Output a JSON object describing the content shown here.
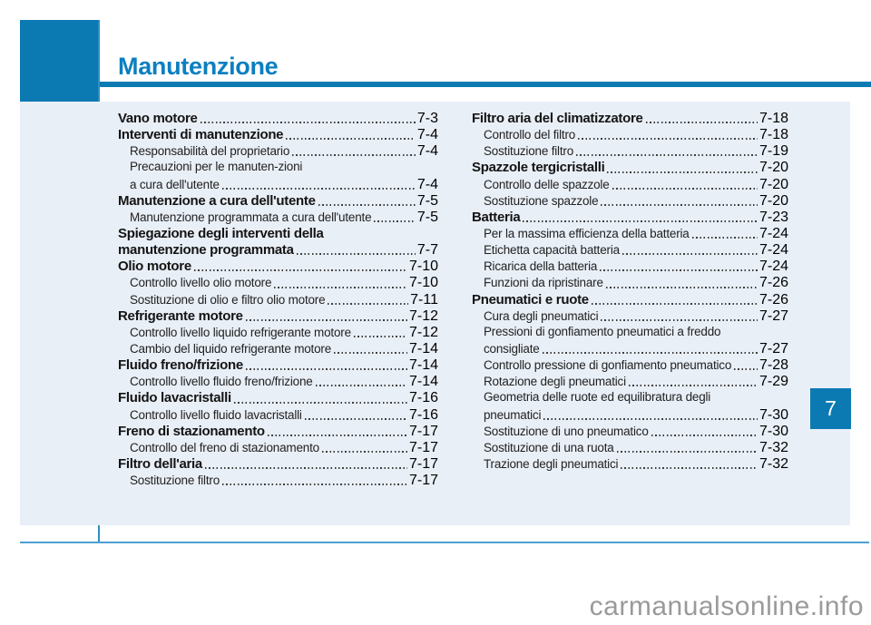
{
  "header": {
    "title": "Manutenzione"
  },
  "chapter_tab": {
    "number": "7"
  },
  "watermark": {
    "text": "carmanualsonline.info"
  },
  "colors": {
    "accent_blue": "#0b7ab2",
    "panel_light_blue": "#e9eff7",
    "footer_rule_blue": "#4d9fd1",
    "body_text": "#1c1c1c",
    "watermark_gray": "#9a9a9a"
  },
  "toc": {
    "left_column": [
      {
        "label": "Vano motore",
        "page": "7-3",
        "level": "main"
      },
      {
        "label": "Interventi di manutenzione",
        "page": "7-4",
        "level": "main"
      },
      {
        "label": "Responsabilità del proprietario",
        "page": "7-4",
        "level": "sub"
      },
      {
        "label": "Precauzioni per le manuten-zioni",
        "page": "",
        "level": "sub"
      },
      {
        "label": "a cura dell'utente",
        "page": "7-4",
        "level": "sub"
      },
      {
        "label": "Manutenzione a cura dell'utente",
        "page": "7-5",
        "level": "main"
      },
      {
        "label": "Manutenzione programmata a cura dell'utente",
        "page": "7-5",
        "level": "sub"
      },
      {
        "label": "Spiegazione degli interventi della",
        "page": "",
        "level": "main"
      },
      {
        "label": "manutenzione programmata",
        "page": "7-7",
        "level": "main"
      },
      {
        "label": "Olio motore",
        "page": "7-10",
        "level": "main"
      },
      {
        "label": "Controllo livello olio motore",
        "page": "7-10",
        "level": "sub"
      },
      {
        "label": "Sostituzione di olio e filtro olio motore",
        "page": "7-11",
        "level": "sub"
      },
      {
        "label": "Refrigerante motore",
        "page": "7-12",
        "level": "main"
      },
      {
        "label": "Controllo livello liquido refrigerante motore",
        "page": "7-12",
        "level": "sub"
      },
      {
        "label": "Cambio del liquido refrigerante motore",
        "page": "7-14",
        "level": "sub"
      },
      {
        "label": "Fluido freno/frizione",
        "page": "7-14",
        "level": "main"
      },
      {
        "label": "Controllo livello fluido freno/frizione",
        "page": "7-14",
        "level": "sub"
      },
      {
        "label": "Fluido lavacristalli",
        "page": "7-16",
        "level": "main"
      },
      {
        "label": "Controllo livello fluido lavacristalli",
        "page": "7-16",
        "level": "sub"
      },
      {
        "label": "Freno di stazionamento",
        "page": "7-17",
        "level": "main"
      },
      {
        "label": "Controllo del freno di stazionamento",
        "page": "7-17",
        "level": "sub"
      },
      {
        "label": "Filtro dell'aria",
        "page": "7-17",
        "level": "main"
      },
      {
        "label": "Sostituzione filtro",
        "page": "7-17",
        "level": "sub"
      }
    ],
    "right_column": [
      {
        "label": "Filtro aria del climatizzatore",
        "page": "7-18",
        "level": "main"
      },
      {
        "label": "Controllo del filtro",
        "page": "7-18",
        "level": "sub"
      },
      {
        "label": "Sostituzione filtro",
        "page": "7-19",
        "level": "sub"
      },
      {
        "label": "Spazzole tergicristalli",
        "page": "7-20",
        "level": "main"
      },
      {
        "label": "Controllo delle spazzole",
        "page": "7-20",
        "level": "sub"
      },
      {
        "label": "Sostituzione spazzole",
        "page": "7-20",
        "level": "sub"
      },
      {
        "label": "Batteria",
        "page": "7-23",
        "level": "main"
      },
      {
        "label": "Per la massima efficienza della batteria",
        "page": "7-24",
        "level": "sub"
      },
      {
        "label": "Etichetta capacità batteria",
        "page": "7-24",
        "level": "sub"
      },
      {
        "label": "Ricarica della batteria",
        "page": "7-24",
        "level": "sub"
      },
      {
        "label": "Funzioni da ripristinare",
        "page": "7-26",
        "level": "sub"
      },
      {
        "label": "Pneumatici e ruote",
        "page": "7-26",
        "level": "main"
      },
      {
        "label": "Cura degli pneumatici",
        "page": "7-27",
        "level": "sub"
      },
      {
        "label": "Pressioni di gonfiamento pneumatici a freddo",
        "page": "",
        "level": "sub"
      },
      {
        "label": "consigliate",
        "page": "7-27",
        "level": "sub"
      },
      {
        "label": "Controllo pressione di gonfiamento pneumatico",
        "page": "7-28",
        "level": "sub"
      },
      {
        "label": "Rotazione degli pneumatici",
        "page": "7-29",
        "level": "sub"
      },
      {
        "label": "Geometria delle ruote ed equilibratura degli",
        "page": "",
        "level": "sub"
      },
      {
        "label": "pneumatici",
        "page": "7-30",
        "level": "sub"
      },
      {
        "label": "Sostituzione di uno pneumatico",
        "page": "7-30",
        "level": "sub"
      },
      {
        "label": "Sostituzione di una ruota",
        "page": "7-32",
        "level": "sub"
      },
      {
        "label": "Trazione degli pneumatici",
        "page": "7-32",
        "level": "sub"
      }
    ]
  }
}
